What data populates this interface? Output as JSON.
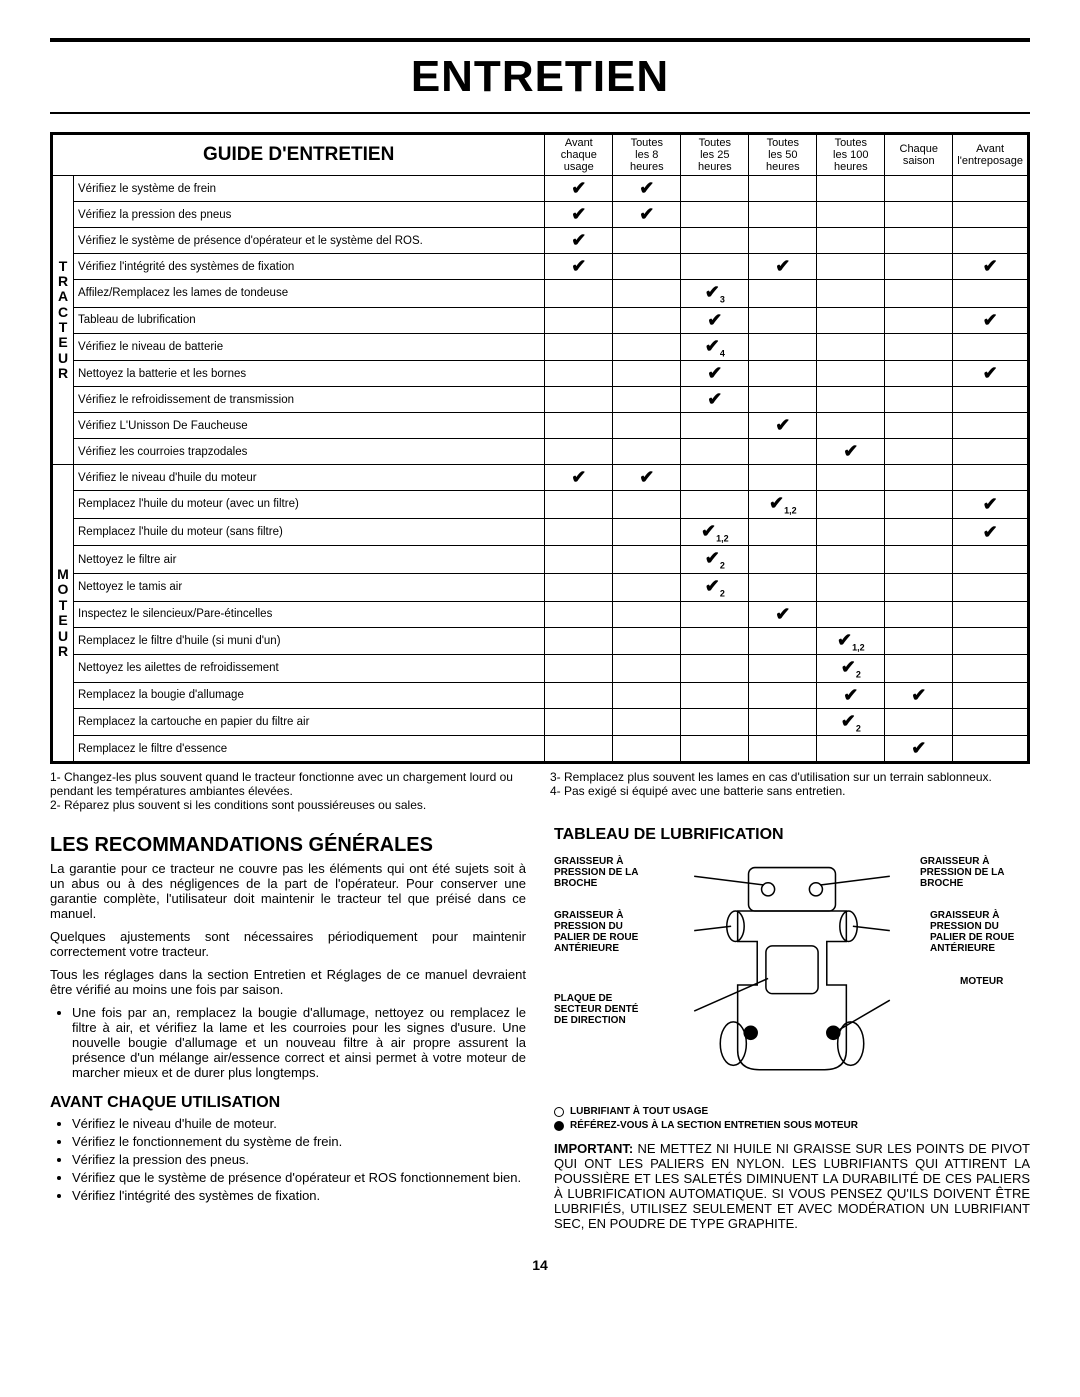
{
  "pageTitle": "ENTRETIEN",
  "table": {
    "title": "GUIDE D'ENTRETIEN",
    "columns": [
      "Avant\nchaque\nusage",
      "Toutes\nles 8\nheures",
      "Toutes\nles 25\nheures",
      "Toutes\nles 50\nheures",
      "Toutes\nles 100\nheures",
      "Chaque\nsaison",
      "Avant\nl'entreposage"
    ],
    "groups": [
      {
        "side": "TRACTEUR",
        "rows": [
          {
            "label": "Vérifiez le système de frein",
            "checks": [
              "✔",
              "✔",
              "",
              "",
              "",
              "",
              ""
            ]
          },
          {
            "label": "Vérifiez la pression des pneus",
            "checks": [
              "✔",
              "✔",
              "",
              "",
              "",
              "",
              ""
            ]
          },
          {
            "label": "Vérifiez le système de présence d'opérateur et le système del ROS.",
            "checks": [
              "✔",
              "",
              "",
              "",
              "",
              "",
              ""
            ]
          },
          {
            "label": "Vérifiez l'intégrité des systèmes de fixation",
            "checks": [
              "✔",
              "",
              "",
              "✔",
              "",
              "",
              "✔"
            ]
          },
          {
            "label": "Affilez/Remplacez les lames de tondeuse",
            "checks": [
              "",
              "",
              "✔",
              "",
              "",
              "",
              ""
            ],
            "sub": "3"
          },
          {
            "label": "Tableau de lubrification",
            "checks": [
              "",
              "",
              "✔",
              "",
              "",
              "",
              "✔"
            ]
          },
          {
            "label": "Vérifiez le niveau de batterie",
            "checks": [
              "",
              "",
              "✔",
              "",
              "",
              "",
              ""
            ],
            "sub": "4"
          },
          {
            "label": "Nettoyez la batterie et les bornes",
            "checks": [
              "",
              "",
              "✔",
              "",
              "",
              "",
              "✔"
            ]
          },
          {
            "label": "Vérifiez le refroidissement de transmission",
            "checks": [
              "",
              "",
              "✔",
              "",
              "",
              "",
              ""
            ]
          },
          {
            "label": "Vérifiez L'Unisson De Faucheuse",
            "checks": [
              "",
              "",
              "",
              "✔",
              "",
              "",
              ""
            ]
          },
          {
            "label": "Vérifiez les courroies trapzodales",
            "checks": [
              "",
              "",
              "",
              "",
              "✔",
              "",
              ""
            ]
          }
        ]
      },
      {
        "side": "MOTEUR",
        "rows": [
          {
            "label": "Vérifiez le niveau d'huile du moteur",
            "checks": [
              "✔",
              "✔",
              "",
              "",
              "",
              "",
              ""
            ]
          },
          {
            "label": "Remplacez l'huile du moteur (avec un filtre)",
            "checks": [
              "",
              "",
              "",
              "✔",
              "",
              "",
              "✔"
            ],
            "sub": "1,2"
          },
          {
            "label": "Remplacez l'huile du moteur (sans filtre)",
            "checks": [
              "",
              "",
              "✔",
              "",
              "",
              "",
              "✔"
            ],
            "sub": "1,2"
          },
          {
            "label": "Nettoyez le filtre   air",
            "checks": [
              "",
              "",
              "✔",
              "",
              "",
              "",
              ""
            ],
            "sub": "2"
          },
          {
            "label": "Nettoyez le tamis   air",
            "checks": [
              "",
              "",
              "✔",
              "",
              "",
              "",
              ""
            ],
            "sub": "2"
          },
          {
            "label": "Inspectez le silencieux/Pare-étincelles",
            "checks": [
              "",
              "",
              "",
              "✔",
              "",
              "",
              ""
            ]
          },
          {
            "label": "Remplacez le filtre d'huile (si muni d'un)",
            "checks": [
              "",
              "",
              "",
              "",
              "✔",
              "",
              ""
            ],
            "sub": "1,2"
          },
          {
            "label": "Nettoyez les ailettes de refroidissement",
            "checks": [
              "",
              "",
              "",
              "",
              "✔",
              "",
              ""
            ],
            "sub": "2"
          },
          {
            "label": "Remplacez la bougie d'allumage",
            "checks": [
              "",
              "",
              "",
              "",
              "✔",
              "✔",
              ""
            ]
          },
          {
            "label": "Remplacez la cartouche en papier du filtre   air",
            "checks": [
              "",
              "",
              "",
              "",
              "✔",
              "",
              ""
            ],
            "sub": "2"
          },
          {
            "label": "Remplacez le filtre d'essence",
            "checks": [
              "",
              "",
              "",
              "",
              "",
              "✔",
              ""
            ]
          }
        ]
      }
    ]
  },
  "footnotes": {
    "left1": "1- Changez-les plus souvent quand le tracteur fonctionne avec un chargement lourd ou pendant les températures ambiantes élevées.",
    "left2": "2- Réparez plus souvent si les conditions sont poussiéreuses ou sales.",
    "right1": "3- Remplacez plus souvent les lames en cas d'utilisation sur un terrain sablonneux.",
    "right2": "4- Pas exigé si équipé avec une batterie sans entretien."
  },
  "leftCol": {
    "h1": "LES RECOMMANDATIONS GÉNÉRALES",
    "p1": "La garantie pour ce tracteur ne couvre pas les éléments qui ont été sujets soit à un abus ou à des négligences de la part de l'opérateur.  Pour conserver une garantie complète, l'utilisateur doit maintenir le tracteur tel que préisé dans ce manuel.",
    "p2": "Quelques ajustements sont nécessaires périodiquement pour maintenir correctement votre tracteur.",
    "p3": "Tous les réglages dans la section Entretien et Réglages de ce manuel devraient être vérifié au moins une fois par saison.",
    "bullet1": "Une fois par an, remplacez la bougie d'allumage, nettoyez ou remplacez le filtre à air, et vérifiez la lame et les courroies pour les signes d'usure. Une nouvelle bougie d'allumage et un nouveau filtre à air propre assurent la présence d'un mélange air/essence correct et ainsi permet à votre moteur de marcher mieux et de durer plus longtemps.",
    "h2": "AVANT CHAQUE UTILISATION",
    "b2a": "Vérifiez le niveau d'huile de moteur.",
    "b2b": "Vérifiez le fonctionnement du système de frein.",
    "b2c": "Vérifiez la pression des pneus.",
    "b2d": "Vérifiez que le système de présence d'opérateur et ROS fonctionnement bien.",
    "b2e": "Vérifiez l'intégrité des systèmes de fixation."
  },
  "rightCol": {
    "h1": "TABLEAU DE LUBRIFICATION",
    "labels": {
      "brocheL": "GRAISSEUR À PRESSION DE LA BROCHE",
      "brocheR": "GRAISSEUR À PRESSION DE LA BROCHE",
      "roueL": "GRAISSEUR À PRESSION DU PALIER DE ROUE ANTÉRIEURE",
      "roueR": "GRAISSEUR À PRESSION DU PALIER DE ROUE ANTÉRIEURE",
      "plaque": "PLAQUE DE SECTEUR DENTÉ DE DIRECTION",
      "moteur": "MOTEUR"
    },
    "lub1": "LUBRIFIANT À TOUT USAGE",
    "lub2": "RÉFÉREZ-VOUS À LA SECTION ENTRETIEN SOUS MOTEUR",
    "important": "IMPORTANT:",
    "importantText": "NE METTEZ NI HUILE NI GRAISSE SUR LES POINTS DE PIVOT QUI ONT LES PALIERS EN NYLON. LES LUBRIFIANTS QUI ATTIRENT LA POUSSIÈRE ET LES SALETÉS DIMINUENT LA DURABILITÉ DE CES PALIERS À LUBRIFICATION AUTOMATIQUE.  SI VOUS PENSEZ QU'ILS DOIVENT ÊTRE LUBRIFIÉS, UTILISEZ SEULEMENT ET AVEC MODÉRATION UN LUBRIFIANT SEC, EN POUDRE DE TYPE GRAPHITE."
  },
  "pageNum": "14"
}
